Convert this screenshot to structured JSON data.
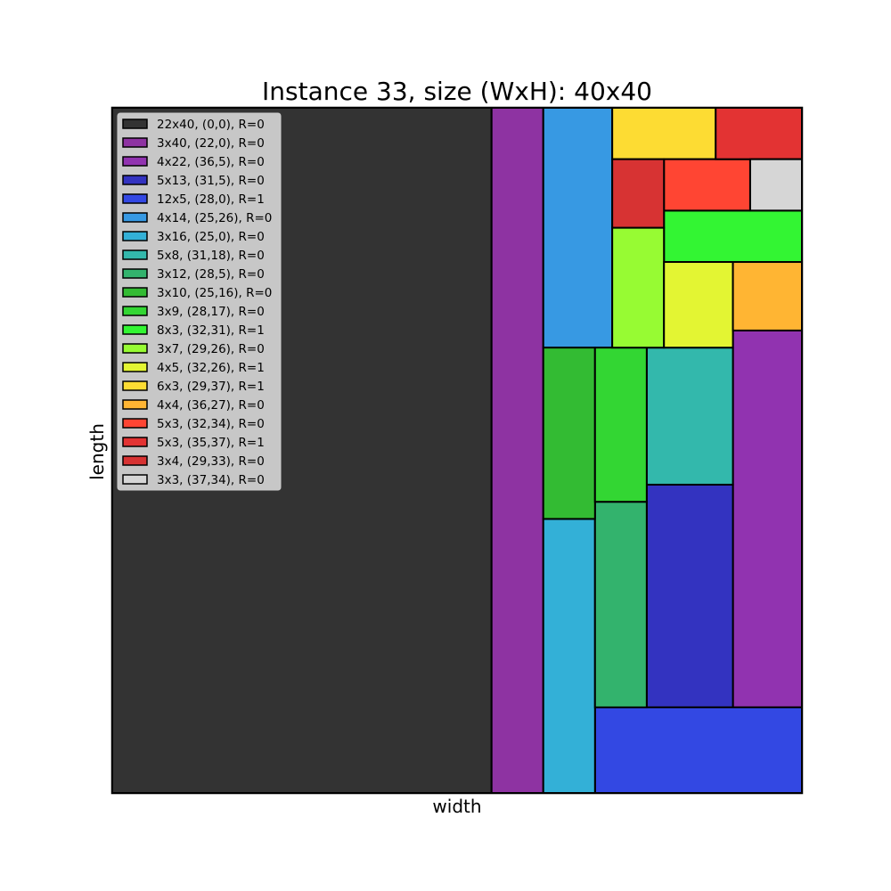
{
  "chart_data": {
    "type": "rectangle_packing",
    "title": "Instance 33, size (WxH): 40x40",
    "xlabel": "width",
    "ylabel": "length",
    "container": {
      "width": 40,
      "height": 40
    },
    "grid": false,
    "legend_position": "top-left",
    "pieces": [
      {
        "label": "22x40, (0,0), R=0",
        "w": 22,
        "h": 40,
        "x": 0,
        "y": 0,
        "color": "#333333"
      },
      {
        "label": "3x40, (22,0), R=0",
        "w": 3,
        "h": 40,
        "x": 22,
        "y": 0,
        "color": "#8e33a2"
      },
      {
        "label": "4x22, (36,5), R=0",
        "w": 4,
        "h": 22,
        "x": 36,
        "y": 5,
        "color": "#9133b0"
      },
      {
        "label": "5x13, (31,5), R=0",
        "w": 5,
        "h": 13,
        "x": 31,
        "y": 5,
        "color": "#3333c0"
      },
      {
        "label": "12x5, (28,0), R=1",
        "w": 12,
        "h": 5,
        "x": 28,
        "y": 0,
        "color": "#3348e3"
      },
      {
        "label": "4x14, (25,26), R=0",
        "w": 4,
        "h": 14,
        "x": 25,
        "y": 26,
        "color": "#3799e3"
      },
      {
        "label": "3x16, (25,0), R=0",
        "w": 3,
        "h": 16,
        "x": 25,
        "y": 0,
        "color": "#33b0d7"
      },
      {
        "label": "5x8, (31,18), R=0",
        "w": 5,
        "h": 8,
        "x": 31,
        "y": 18,
        "color": "#33b8ac"
      },
      {
        "label": "3x12, (28,5), R=0",
        "w": 3,
        "h": 12,
        "x": 28,
        "y": 5,
        "color": "#33b36d"
      },
      {
        "label": "3x10, (25,16), R=0",
        "w": 3,
        "h": 10,
        "x": 25,
        "y": 16,
        "color": "#33bb33"
      },
      {
        "label": "3x9, (28,17), R=0",
        "w": 3,
        "h": 9,
        "x": 28,
        "y": 17,
        "color": "#33d633"
      },
      {
        "label": "8x3, (32,31), R=1",
        "w": 8,
        "h": 3,
        "x": 32,
        "y": 31,
        "color": "#33f533"
      },
      {
        "label": "3x7, (29,26), R=0",
        "w": 3,
        "h": 7,
        "x": 29,
        "y": 26,
        "color": "#97fb33"
      },
      {
        "label": "4x5, (32,26), R=1",
        "w": 4,
        "h": 5,
        "x": 32,
        "y": 26,
        "color": "#e3f533"
      },
      {
        "label": "6x3, (29,37), R=1",
        "w": 6,
        "h": 3,
        "x": 29,
        "y": 37,
        "color": "#fddc33"
      },
      {
        "label": "4x4, (36,27), R=0",
        "w": 4,
        "h": 4,
        "x": 36,
        "y": 27,
        "color": "#ffb533"
      },
      {
        "label": "5x3, (32,34), R=0",
        "w": 5,
        "h": 3,
        "x": 32,
        "y": 34,
        "color": "#ff4533"
      },
      {
        "label": "5x3, (35,37), R=1",
        "w": 5,
        "h": 3,
        "x": 35,
        "y": 37,
        "color": "#e33333"
      },
      {
        "label": "3x4, (29,33), R=0",
        "w": 3,
        "h": 4,
        "x": 29,
        "y": 33,
        "color": "#d73333"
      },
      {
        "label": "3x3, (37,34), R=0",
        "w": 3,
        "h": 3,
        "x": 37,
        "y": 34,
        "color": "#d6d6d6"
      }
    ]
  }
}
